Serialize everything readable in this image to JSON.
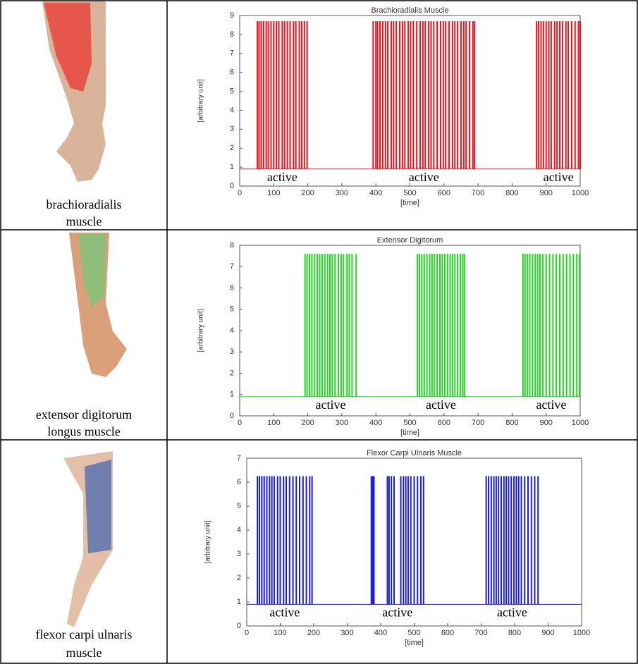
{
  "table": {
    "rows": [
      {
        "label": [
          "brachioradialis",
          "muscle"
        ]
      },
      {
        "label": [
          "extensor digitorum",
          "longus muscle"
        ]
      },
      {
        "label": [
          "flexor carpi ulnaris",
          "muscle"
        ]
      }
    ]
  },
  "chart_data": [
    {
      "type": "spike",
      "title": "Brachioradialis Muscle",
      "xlabel": "[time]",
      "ylabel": "[arbitrary unit]",
      "xlim": [
        0,
        1000
      ],
      "ylim": [
        0,
        9
      ],
      "xticks": [
        0,
        100,
        200,
        300,
        400,
        500,
        600,
        700,
        800,
        900,
        1000
      ],
      "yticks": [
        0,
        1,
        2,
        3,
        4,
        5,
        6,
        7,
        8,
        9
      ],
      "color": "#e8141c",
      "baseline": 0.9,
      "peak": 8.7,
      "bursts": [
        {
          "label": "active",
          "x": [
            52,
            57,
            63,
            70,
            78,
            84,
            92,
            100,
            108,
            115,
            125,
            132,
            140,
            148,
            158,
            165,
            175,
            182,
            190,
            198
          ]
        },
        {
          "label": "active",
          "x": [
            392,
            400,
            405,
            412,
            420,
            428,
            435,
            445,
            452,
            460,
            470,
            478,
            485,
            495,
            502,
            510,
            520,
            530,
            538,
            545,
            555,
            562,
            570,
            580,
            590,
            598,
            605,
            615,
            625,
            632,
            640,
            650,
            658,
            665,
            675,
            685,
            690
          ]
        },
        {
          "label": "active",
          "x": [
            872,
            878,
            885,
            892,
            900,
            908,
            915,
            925,
            932,
            940,
            948,
            958,
            965,
            975,
            985,
            995,
            1000
          ]
        }
      ]
    },
    {
      "type": "spike",
      "title": "Extensor Digitorum",
      "xlabel": "[time]",
      "ylabel": "[arbitrary unit]",
      "xlim": [
        0,
        1000
      ],
      "ylim": [
        0,
        8
      ],
      "xticks": [
        0,
        100,
        200,
        300,
        400,
        500,
        600,
        700,
        800,
        900,
        1000
      ],
      "yticks": [
        0,
        1,
        2,
        3,
        4,
        5,
        6,
        7,
        8
      ],
      "color": "#22d622",
      "baseline": 0.9,
      "peak": 7.6,
      "bursts": [
        {
          "label": "active",
          "x": [
            192,
            198,
            205,
            212,
            220,
            228,
            235,
            242,
            250,
            258,
            265,
            272,
            280,
            290,
            298,
            305,
            315,
            322,
            330,
            342
          ]
        },
        {
          "label": "active",
          "x": [
            522,
            528,
            535,
            542,
            550,
            558,
            565,
            572,
            580,
            588,
            595,
            602,
            610,
            618,
            625,
            632,
            640,
            648,
            655,
            660
          ]
        },
        {
          "label": "active",
          "x": [
            832,
            838,
            845,
            852,
            860,
            868,
            875,
            882,
            890,
            900,
            910,
            920,
            930,
            940,
            950,
            960,
            970,
            980,
            990,
            998
          ]
        }
      ]
    },
    {
      "type": "spike",
      "title": "Flexor Carpi Ulnaris Muscle",
      "xlabel": "[time]",
      "ylabel": "[arbitrary unit]",
      "xlim": [
        0,
        1000
      ],
      "ylim": [
        0,
        7
      ],
      "xticks": [
        0,
        100,
        200,
        300,
        400,
        500,
        600,
        700,
        800,
        900,
        1000
      ],
      "yticks": [
        0,
        1,
        2,
        3,
        4,
        5,
        6,
        7
      ],
      "color": "#1c1cd0",
      "baseline": 0.9,
      "peak": 6.25,
      "bursts": [
        {
          "label": "active",
          "x": [
            32,
            38,
            45,
            52,
            60,
            68,
            75,
            82,
            92,
            100,
            110,
            118,
            128,
            138,
            148,
            158,
            168,
            178,
            188,
            195
          ]
        },
        {
          "label": "active",
          "x": [
            372,
            376,
            380,
            420,
            425,
            432,
            440,
            460,
            468,
            475,
            482,
            490,
            500,
            510,
            520,
            528
          ]
        },
        {
          "label": "active",
          "x": [
            715,
            722,
            730,
            738,
            745,
            752,
            760,
            768,
            775,
            782,
            790,
            798,
            805,
            812,
            820,
            830,
            840,
            850,
            860,
            870
          ]
        }
      ]
    }
  ]
}
